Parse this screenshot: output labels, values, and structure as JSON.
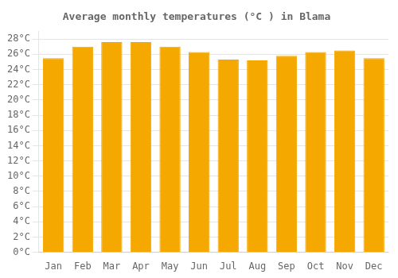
{
  "chart_data": {
    "type": "bar",
    "title": "Average monthly temperatures (°C ) in Blama",
    "categories": [
      "Jan",
      "Feb",
      "Mar",
      "Apr",
      "May",
      "Jun",
      "Jul",
      "Aug",
      "Sep",
      "Oct",
      "Nov",
      "Dec"
    ],
    "values": [
      25.5,
      27.0,
      27.6,
      27.6,
      27.0,
      26.3,
      25.3,
      25.2,
      25.8,
      26.3,
      26.5,
      25.5
    ],
    "color": "#F5A800",
    "ylim": [
      0,
      29
    ],
    "yticks": [
      {
        "value": 0,
        "label": "0°C"
      },
      {
        "value": 2,
        "label": "2°C"
      },
      {
        "value": 4,
        "label": "4°C"
      },
      {
        "value": 6,
        "label": "6°C"
      },
      {
        "value": 8,
        "label": "8°C"
      },
      {
        "value": 10,
        "label": "10°C"
      },
      {
        "value": 12,
        "label": "12°C"
      },
      {
        "value": 14,
        "label": "14°C"
      },
      {
        "value": 16,
        "label": "16°C"
      },
      {
        "value": 18,
        "label": "18°C"
      },
      {
        "value": 20,
        "label": "20°C"
      },
      {
        "value": 22,
        "label": "22°C"
      },
      {
        "value": 24,
        "label": "24°C"
      },
      {
        "value": 26,
        "label": "26°C"
      },
      {
        "value": 28,
        "label": "28°C"
      }
    ],
    "grid": true
  }
}
